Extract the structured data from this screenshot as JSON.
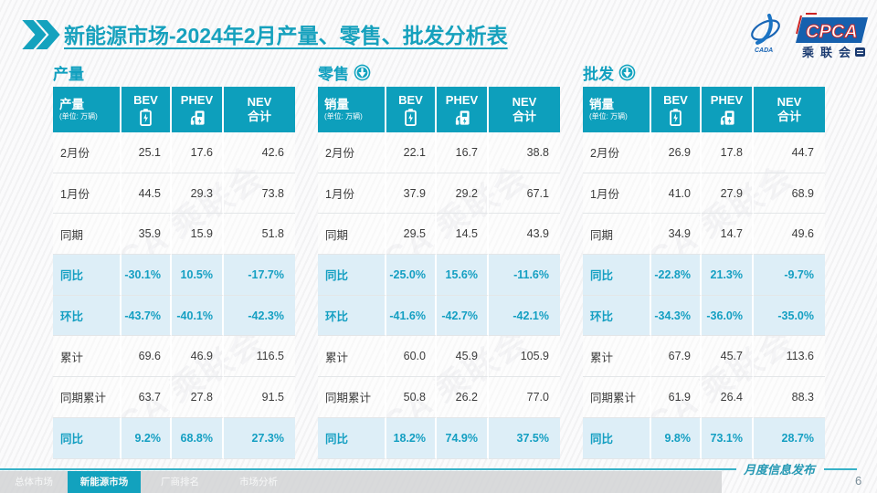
{
  "header": {
    "title_bold": "新能源市场",
    "title_rest": "-2024年2月产量、零售、批发分析表"
  },
  "logo": {
    "emblem_text": "CADA",
    "badge": "CPCA",
    "org_cn": "乘联会"
  },
  "watermark": "CPCA 乘联会",
  "tables": [
    {
      "section_title": "产量",
      "has_arrow": false,
      "label_header": "产量",
      "unit_note": "(单位: 万辆)",
      "columns": {
        "bev": "BEV",
        "phev": "PHEV",
        "nev_line1": "NEV",
        "nev_line2": "合计"
      },
      "rows": [
        {
          "label": "2月份",
          "bev": "25.1",
          "phev": "17.6",
          "nev": "42.6",
          "hl": false
        },
        {
          "label": "1月份",
          "bev": "44.5",
          "phev": "29.3",
          "nev": "73.8",
          "hl": false
        },
        {
          "label": "同期",
          "bev": "35.9",
          "phev": "15.9",
          "nev": "51.8",
          "hl": false
        },
        {
          "label": "同比",
          "bev": "-30.1%",
          "phev": "10.5%",
          "nev": "-17.7%",
          "hl": true
        },
        {
          "label": "环比",
          "bev": "-43.7%",
          "phev": "-40.1%",
          "nev": "-42.3%",
          "hl": true
        },
        {
          "label": "累计",
          "bev": "69.6",
          "phev": "46.9",
          "nev": "116.5",
          "hl": false
        },
        {
          "label": "同期累计",
          "bev": "63.7",
          "phev": "27.8",
          "nev": "91.5",
          "hl": false
        },
        {
          "label": "同比",
          "bev": "9.2%",
          "phev": "68.8%",
          "nev": "27.3%",
          "hl": true
        }
      ]
    },
    {
      "section_title": "零售",
      "has_arrow": true,
      "label_header": "销量",
      "unit_note": "(单位: 万辆)",
      "columns": {
        "bev": "BEV",
        "phev": "PHEV",
        "nev_line1": "NEV",
        "nev_line2": "合计"
      },
      "rows": [
        {
          "label": "2月份",
          "bev": "22.1",
          "phev": "16.7",
          "nev": "38.8",
          "hl": false
        },
        {
          "label": "1月份",
          "bev": "37.9",
          "phev": "29.2",
          "nev": "67.1",
          "hl": false
        },
        {
          "label": "同期",
          "bev": "29.5",
          "phev": "14.5",
          "nev": "43.9",
          "hl": false
        },
        {
          "label": "同比",
          "bev": "-25.0%",
          "phev": "15.6%",
          "nev": "-11.6%",
          "hl": true
        },
        {
          "label": "环比",
          "bev": "-41.6%",
          "phev": "-42.7%",
          "nev": "-42.1%",
          "hl": true
        },
        {
          "label": "累计",
          "bev": "60.0",
          "phev": "45.9",
          "nev": "105.9",
          "hl": false
        },
        {
          "label": "同期累计",
          "bev": "50.8",
          "phev": "26.2",
          "nev": "77.0",
          "hl": false
        },
        {
          "label": "同比",
          "bev": "18.2%",
          "phev": "74.9%",
          "nev": "37.5%",
          "hl": true
        }
      ]
    },
    {
      "section_title": "批发",
      "has_arrow": true,
      "label_header": "销量",
      "unit_note": "(单位: 万辆)",
      "columns": {
        "bev": "BEV",
        "phev": "PHEV",
        "nev_line1": "NEV",
        "nev_line2": "合计"
      },
      "rows": [
        {
          "label": "2月份",
          "bev": "26.9",
          "phev": "17.8",
          "nev": "44.7",
          "hl": false
        },
        {
          "label": "1月份",
          "bev": "41.0",
          "phev": "27.9",
          "nev": "68.9",
          "hl": false
        },
        {
          "label": "同期",
          "bev": "34.9",
          "phev": "14.7",
          "nev": "49.6",
          "hl": false
        },
        {
          "label": "同比",
          "bev": "-22.8%",
          "phev": "21.3%",
          "nev": "-9.7%",
          "hl": true
        },
        {
          "label": "环比",
          "bev": "-34.3%",
          "phev": "-36.0%",
          "nev": "-35.0%",
          "hl": true
        },
        {
          "label": "累计",
          "bev": "67.9",
          "phev": "45.7",
          "nev": "113.6",
          "hl": false
        },
        {
          "label": "同期累计",
          "bev": "61.9",
          "phev": "26.4",
          "nev": "88.3",
          "hl": false
        },
        {
          "label": "同比",
          "bev": "9.8%",
          "phev": "73.1%",
          "nev": "28.7%",
          "hl": true
        }
      ]
    }
  ],
  "footer": {
    "tabs": [
      {
        "label": "总体市场",
        "active": false
      },
      {
        "label": "新能源市场",
        "active": true
      },
      {
        "label": "厂商排名",
        "active": false
      },
      {
        "label": "市场分析",
        "active": false
      }
    ],
    "caption": "月度信息发布",
    "page_number": "6"
  },
  "colors": {
    "accent": "#0d9fbc",
    "highlight_bg": "#ddeef7",
    "highlight_text": "#149fc2"
  }
}
